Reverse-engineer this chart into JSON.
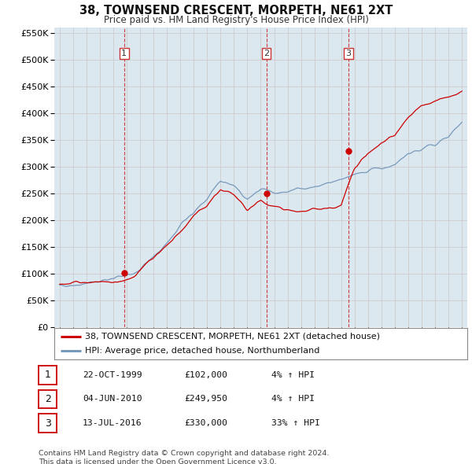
{
  "title": "38, TOWNSEND CRESCENT, MORPETH, NE61 2XT",
  "subtitle": "Price paid vs. HM Land Registry's House Price Index (HPI)",
  "legend_line1": "38, TOWNSEND CRESCENT, MORPETH, NE61 2XT (detached house)",
  "legend_line2": "HPI: Average price, detached house, Northumberland",
  "transactions": [
    {
      "label": "1",
      "date_x": 1999.81,
      "price": 102000,
      "date_str": "22-OCT-1999",
      "price_str": "£102,000",
      "hpi_str": "4% ↑ HPI"
    },
    {
      "label": "2",
      "date_x": 2010.42,
      "price": 249950,
      "date_str": "04-JUN-2010",
      "price_str": "£249,950",
      "hpi_str": "4% ↑ HPI"
    },
    {
      "label": "3",
      "date_x": 2016.53,
      "price": 330000,
      "date_str": "13-JUL-2016",
      "price_str": "£330,000",
      "hpi_str": "33% ↑ HPI"
    }
  ],
  "vline_color": "#cc3333",
  "red_line_color": "#cc0000",
  "blue_line_color": "#7799bb",
  "grid_color": "#cccccc",
  "plot_bg": "#dce8f0",
  "ylim": [
    0,
    560000
  ],
  "xlim_start": 1994.6,
  "xlim_end": 2025.4,
  "footer": "Contains HM Land Registry data © Crown copyright and database right 2024.\nThis data is licensed under the Open Government Licence v3.0.",
  "hpi_keypoints_x": [
    1995,
    1996,
    1997,
    1998,
    1999,
    2000,
    2001,
    2002,
    2003,
    2004,
    2005,
    2006,
    2007,
    2008,
    2009,
    2010,
    2011,
    2012,
    2013,
    2014,
    2015,
    2016,
    2017,
    2018,
    2019,
    2020,
    2021,
    2022,
    2023,
    2024,
    2025
  ],
  "hpi_keypoints_y": [
    78000,
    82000,
    84000,
    86000,
    88000,
    96000,
    110000,
    135000,
    160000,
    185000,
    205000,
    225000,
    255000,
    245000,
    220000,
    230000,
    225000,
    220000,
    225000,
    230000,
    235000,
    245000,
    255000,
    260000,
    265000,
    270000,
    290000,
    295000,
    300000,
    320000,
    345000
  ],
  "red_keypoints_x": [
    1995,
    1996,
    1997,
    1998,
    1999,
    2000,
    2001,
    2002,
    2003,
    2004,
    2005,
    2006,
    2007,
    2008,
    2009,
    2010,
    2011,
    2012,
    2013,
    2014,
    2015,
    2016,
    2017,
    2018,
    2019,
    2020,
    2021,
    2022,
    2023,
    2024,
    2025
  ],
  "red_keypoints_y": [
    80000,
    84000,
    86000,
    88000,
    92000,
    102000,
    120000,
    145000,
    172000,
    198000,
    220000,
    242000,
    272000,
    260000,
    235000,
    248000,
    240000,
    235000,
    240000,
    248000,
    252000,
    262000,
    330000,
    355000,
    370000,
    380000,
    405000,
    430000,
    440000,
    450000,
    465000
  ]
}
